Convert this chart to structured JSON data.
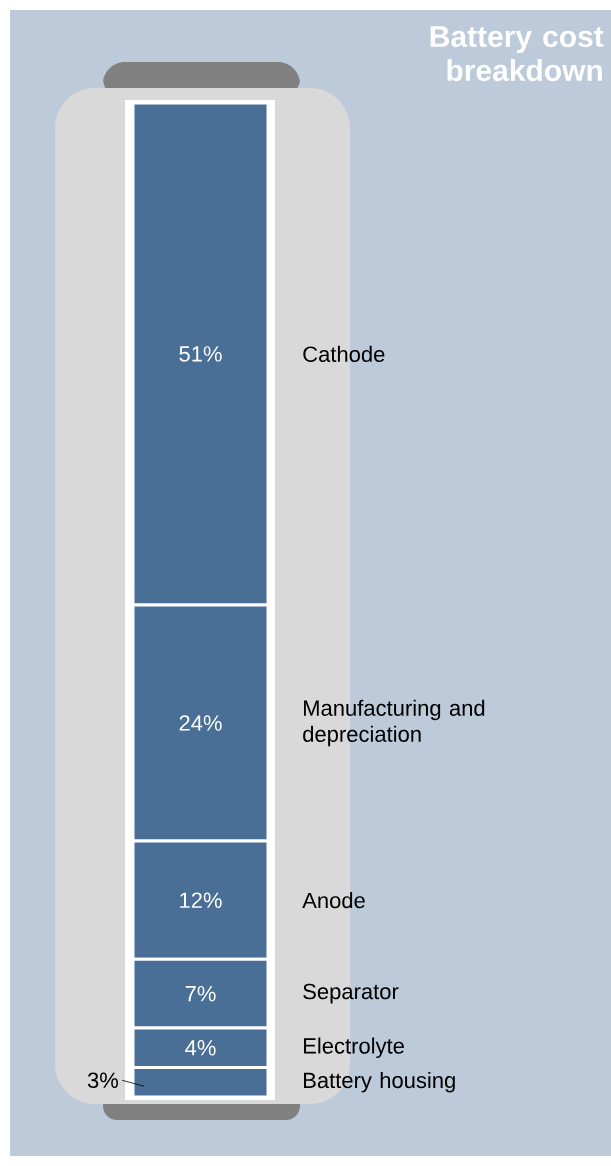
{
  "chart_data": {
    "type": "bar",
    "title": "Battery cost breakdown",
    "stacked": true,
    "categories": [
      null
    ],
    "ylim": [
      0,
      101
    ],
    "series": [
      {
        "name": "Battery housing",
        "color": "#4a6f96",
        "values": [
          3
        ],
        "value_labels": [
          "3%"
        ]
      },
      {
        "name": "Electrolyte",
        "color": "#4a6f96",
        "values": [
          4
        ],
        "value_labels": [
          "4%"
        ]
      },
      {
        "name": "Separator",
        "color": "#4a6f96",
        "values": [
          7
        ],
        "value_labels": [
          "7%"
        ]
      },
      {
        "name": "Anode",
        "color": "#4a6f96",
        "values": [
          12
        ],
        "value_labels": [
          "12%"
        ]
      },
      {
        "name": "Manufacturing and depreciation",
        "color": "#4a6f96",
        "values": [
          24
        ],
        "value_labels": [
          "24%"
        ]
      },
      {
        "name": "Cathode",
        "color": "#4a6f96",
        "values": [
          51
        ],
        "value_labels": [
          "51%"
        ]
      }
    ]
  }
}
